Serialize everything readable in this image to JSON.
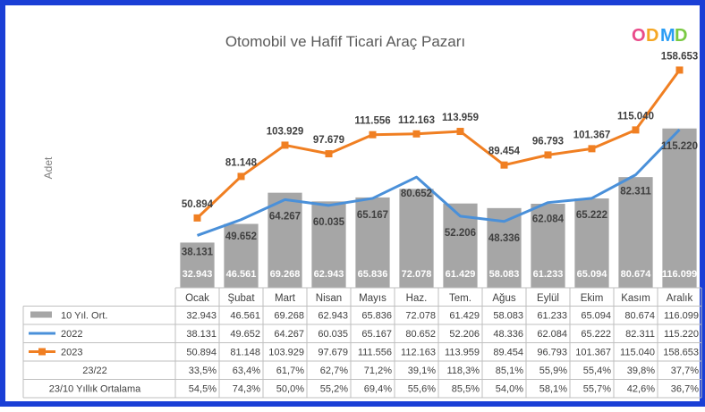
{
  "chart_data": {
    "type": "bar+line",
    "title": "Otomobil ve Hafif Ticari Araç Pazarı",
    "ylabel": "Adet",
    "categories": [
      "Ocak",
      "Şubat",
      "Mart",
      "Nisan",
      "Mayıs",
      "Haz.",
      "Tem.",
      "Ağus",
      "Eylül",
      "Ekim",
      "Kasım",
      "Aralık"
    ],
    "series": [
      {
        "name": "10 Yıl. Ort.",
        "kind": "bar",
        "color": "#a6a6a6",
        "values": [
          32943,
          46561,
          69268,
          62943,
          65836,
          72078,
          61429,
          58083,
          61233,
          65094,
          80674,
          116099
        ],
        "labels": [
          "32.943",
          "46.561",
          "69.268",
          "62.943",
          "65.836",
          "72.078",
          "61.429",
          "58.083",
          "61.233",
          "65.094",
          "80.674",
          "116.099"
        ]
      },
      {
        "name": "2022",
        "kind": "line",
        "color": "#4a90d9",
        "values": [
          38131,
          49652,
          64267,
          60035,
          65167,
          80652,
          52206,
          48336,
          62084,
          65222,
          82311,
          115220
        ],
        "labels": [
          "38.131",
          "49.652",
          "64.267",
          "60.035",
          "65.167",
          "80.652",
          "52.206",
          "48.336",
          "62.084",
          "65.222",
          "82.311",
          "115.220"
        ]
      },
      {
        "name": "2023",
        "kind": "line",
        "color": "#f07f22",
        "values": [
          50894,
          81148,
          103929,
          97679,
          111556,
          112163,
          113959,
          89454,
          96793,
          101367,
          115040,
          158653
        ],
        "labels": [
          "50.894",
          "81.148",
          "103.929",
          "97.679",
          "111.556",
          "112.163",
          "113.959",
          "89.454",
          "96.793",
          "101.367",
          "115.040",
          "158.653"
        ]
      }
    ],
    "table_rows": [
      {
        "name": "23/22",
        "values": [
          "33,5%",
          "63,4%",
          "61,7%",
          "62,7%",
          "71,2%",
          "39,1%",
          "118,3%",
          "85,1%",
          "55,9%",
          "55,4%",
          "39,8%",
          "37,7%"
        ]
      },
      {
        "name": "23/10 Yıllık Ortalama",
        "values": [
          "54,5%",
          "74,3%",
          "50,0%",
          "55,2%",
          "69,4%",
          "55,6%",
          "85,5%",
          "54,0%",
          "58,1%",
          "55,7%",
          "42,6%",
          "36,7%"
        ]
      }
    ],
    "ylim": [
      0,
      170000
    ],
    "grid": false,
    "legend": "table"
  },
  "logo": {
    "letters": [
      "O",
      "D",
      "M",
      "D"
    ],
    "colors": [
      "#e94b8a",
      "#f5a623",
      "#2a9df4",
      "#7ac943"
    ]
  }
}
